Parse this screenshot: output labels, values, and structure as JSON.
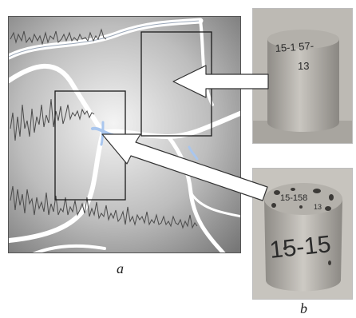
{
  "figure": {
    "caption_a": "a",
    "caption_b": "b"
  },
  "samples": {
    "top_label": [
      "15-1 57-",
      "13"
    ],
    "bottom_label_top": [
      "15-158",
      "13"
    ],
    "bottom_label_side": "15-15"
  },
  "colors": {
    "background": "#ffffff",
    "crack_fill": "#f4f6fa",
    "crack_highlight": "#a9c6ee",
    "zoom_frame": "#1b1b1b",
    "arrow_fill": "#ffffff",
    "sample_top_bg": "#bdbab4",
    "sample_bottom_bg": "#c7c4be"
  }
}
